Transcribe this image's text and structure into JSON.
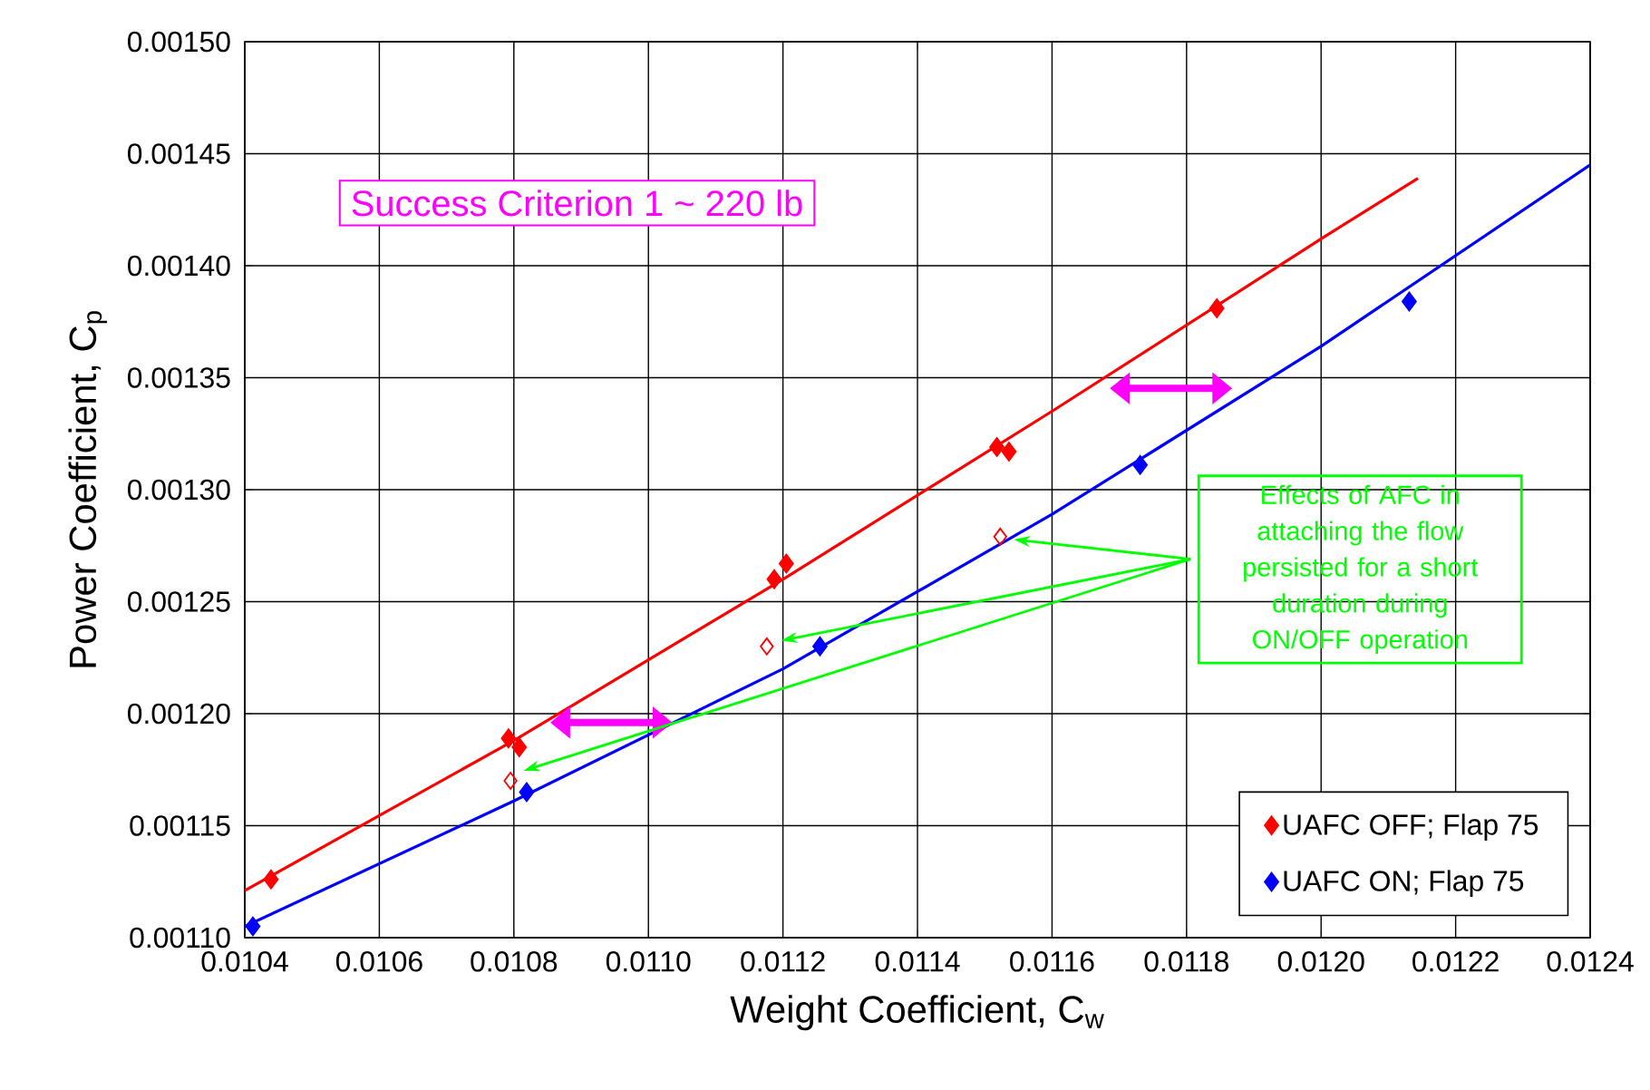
{
  "chart_data": {
    "type": "scatter",
    "xlabel": "Weight Coefficient, C$_{w}$",
    "ylabel": "Power Coefficient, C$_{p}$",
    "xlim": [
      0.0104,
      0.0124
    ],
    "ylim": [
      0.0011,
      0.0015
    ],
    "xticks": [
      {
        "value": 0.0104,
        "label": "0.0104"
      },
      {
        "value": 0.0106,
        "label": "0.0106"
      },
      {
        "value": 0.0108,
        "label": "0.0108"
      },
      {
        "value": 0.011,
        "label": "0.0110"
      },
      {
        "value": 0.0112,
        "label": "0.0112"
      },
      {
        "value": 0.0114,
        "label": "0.0114"
      },
      {
        "value": 0.0116,
        "label": "0.0116"
      },
      {
        "value": 0.0118,
        "label": "0.0118"
      },
      {
        "value": 0.012,
        "label": "0.0120"
      },
      {
        "value": 0.0122,
        "label": "0.0122"
      },
      {
        "value": 0.0124,
        "label": "0.0124"
      }
    ],
    "yticks": [
      {
        "value": 0.0011,
        "label": "0.00110"
      },
      {
        "value": 0.00115,
        "label": "0.00115"
      },
      {
        "value": 0.0012,
        "label": "0.00120"
      },
      {
        "value": 0.00125,
        "label": "0.00125"
      },
      {
        "value": 0.0013,
        "label": "0.00130"
      },
      {
        "value": 0.00135,
        "label": "0.00135"
      },
      {
        "value": 0.0014,
        "label": "0.00140"
      },
      {
        "value": 0.00145,
        "label": "0.00145"
      },
      {
        "value": 0.0015,
        "label": "0.00150"
      }
    ],
    "grid": true,
    "legend": "bottom right",
    "series": [
      {
        "name": "UAFC OFF; Flap 75",
        "color": "#ff0000",
        "marker": "diamond",
        "x": [
          0.010439,
          0.010792,
          0.010808,
          0.011187,
          0.011205,
          0.011518,
          0.011536,
          0.011845
        ],
        "values": [
          0.001126,
          0.001189,
          0.001185,
          0.00126,
          0.001267,
          0.001319,
          0.001317,
          0.001381
        ]
      },
      {
        "name": "UAFC ON; Flap 75",
        "color": "#0000ff",
        "marker": "diamond",
        "x": [
          0.010412,
          0.010819,
          0.011255,
          0.011731,
          0.012131
        ],
        "values": [
          0.001105,
          0.001165,
          0.00123,
          0.001311,
          0.001384
        ]
      },
      {
        "color": "#ff0000",
        "marker": "diamond",
        "x": [
          0.010795,
          0.011176,
          0.011523
        ],
        "values": [
          0.00117,
          0.00123,
          0.001279
        ]
      },
      {
        "type": "line",
        "color": "#ff0000",
        "marker": "none",
        "x": [
          0.0104,
          0.0108,
          0.0112,
          0.0116,
          0.012,
          0.012144
        ],
        "values": [
          0.001121,
          0.001188,
          0.00126,
          0.001335,
          0.001412,
          0.001439
        ]
      },
      {
        "type": "line",
        "color": "#0000ff",
        "marker": "none",
        "x": [
          0.0104,
          0.0108,
          0.0112,
          0.0116,
          0.012,
          0.0124
        ],
        "values": [
          0.001105,
          0.001161,
          0.00122,
          0.001289,
          0.001364,
          0.001445
        ]
      }
    ],
    "annotations": [
      "Success Criterion 1 ~ 220 lb",
      "Effects of AFC in attaching the flow persisted for a short duration during ON/OFF operation"
    ]
  }
}
